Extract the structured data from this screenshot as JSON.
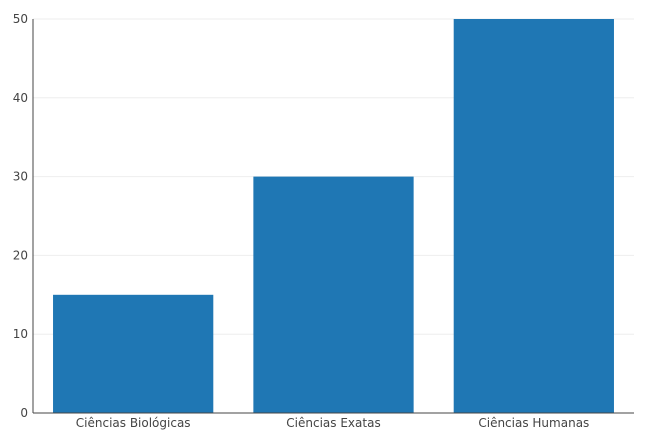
{
  "chart_data": {
    "type": "bar",
    "categories": [
      "Ciências Biológicas",
      "Ciências Exatas",
      "Ciências Humanas"
    ],
    "values": [
      15,
      30,
      50
    ],
    "title": "",
    "xlabel": "",
    "ylabel": "",
    "ylim": [
      0,
      50
    ],
    "yticks": [
      0,
      10,
      20,
      30,
      40,
      50
    ],
    "grid": true,
    "legend": "none",
    "colors": {
      "bar": "#1f77b4",
      "grid": "#eeeeee",
      "axis": "#444444"
    }
  }
}
